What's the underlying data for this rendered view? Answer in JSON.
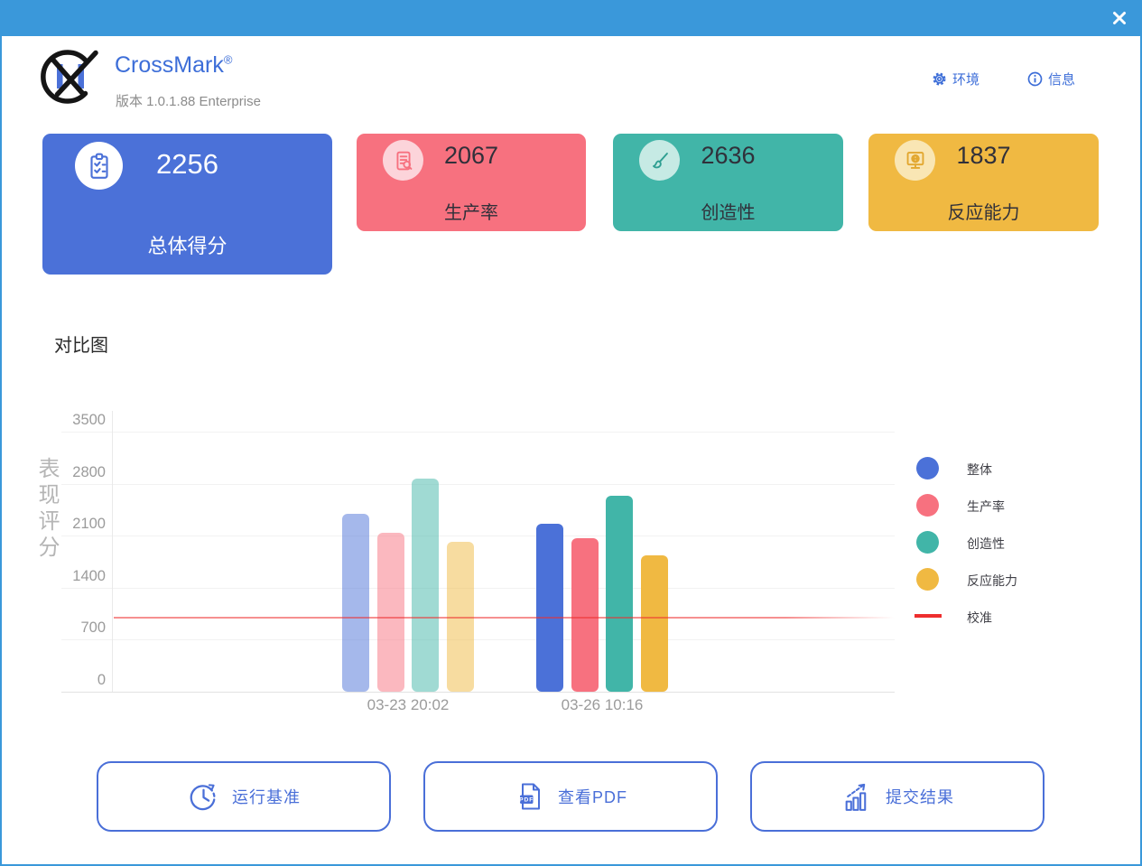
{
  "titlebar": {
    "close": "✕"
  },
  "header": {
    "app_name": "CrossMark",
    "trademark": "®",
    "version_line": "版本 1.0.1.88 Enterprise",
    "nav": [
      {
        "id": "environment",
        "label": "环境"
      },
      {
        "id": "info",
        "label": "信息"
      }
    ]
  },
  "score_cards": [
    {
      "id": "overall",
      "score": "2256",
      "label": "总体得分",
      "color": "#4b71d8",
      "icon": "clipboard-checklist-icon"
    },
    {
      "id": "productivity",
      "score": "2067",
      "label": "生产率",
      "color": "#f7717f",
      "icon": "document-search-icon"
    },
    {
      "id": "creativity",
      "score": "2636",
      "label": "创造性",
      "color": "#41b5a8",
      "icon": "paintbrush-icon"
    },
    {
      "id": "responsiveness",
      "score": "1837",
      "label": "反应能力",
      "color": "#f0b942",
      "icon": "monitor-globe-icon"
    }
  ],
  "chart_section": {
    "title": "对比图"
  },
  "chart_data": {
    "type": "bar",
    "title": "对比图",
    "xlabel": "",
    "ylabel": "表现评分",
    "ylim": [
      0,
      3500
    ],
    "yticks": [
      0,
      700,
      1400,
      2100,
      2800,
      3500
    ],
    "grid": true,
    "legend_position": "right",
    "categories": [
      "03-23 20:02",
      "03-26 10:16"
    ],
    "category_opacity": [
      0.5,
      1
    ],
    "series": [
      {
        "id": "overall",
        "name": "整体",
        "color": "#4b71d8",
        "values": [
          2400,
          2256
        ]
      },
      {
        "id": "productivity",
        "name": "生产率",
        "color": "#f7717f",
        "values": [
          2140,
          2067
        ]
      },
      {
        "id": "creativity",
        "name": "创造性",
        "color": "#41b5a8",
        "values": [
          2870,
          2636
        ]
      },
      {
        "id": "responsiveness",
        "name": "反应能力",
        "color": "#f0b942",
        "values": [
          2020,
          1837
        ]
      }
    ],
    "baseline": {
      "id": "calibration",
      "name": "校准",
      "value": 1000,
      "color": "#ee2e2e"
    }
  },
  "action_buttons": [
    {
      "id": "run-benchmark",
      "label": "运行基准",
      "icon": "clock-icon"
    },
    {
      "id": "view-pdf",
      "label": "查看PDF",
      "icon": "pdf-icon"
    },
    {
      "id": "submit-results",
      "label": "提交结果",
      "icon": "submit-results-icon"
    }
  ]
}
